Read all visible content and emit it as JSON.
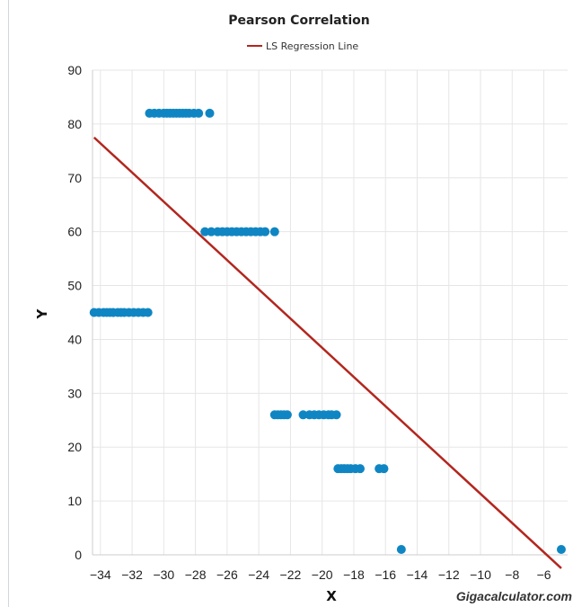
{
  "chart_data": {
    "type": "scatter",
    "title": "Pearson Correlation",
    "xlabel": "X",
    "ylabel": "Y",
    "xlim": [
      -34.5,
      -4.5
    ],
    "ylim": [
      0,
      90
    ],
    "xticks": [
      -34,
      -32,
      -30,
      -28,
      -26,
      -24,
      -22,
      -20,
      -18,
      -16,
      -14,
      -12,
      -10,
      -8,
      -6
    ],
    "yticks": [
      0,
      10,
      20,
      30,
      40,
      50,
      60,
      70,
      80,
      90
    ],
    "grid": true,
    "legend": {
      "position": "top-center",
      "entries": [
        "LS Regression Line"
      ]
    },
    "colors": {
      "points": "#0f86c3",
      "line": "#b3261e"
    },
    "series": [
      {
        "type": "scatter",
        "x": [
          -34.4,
          -34.1,
          -33.8,
          -33.6,
          -33.4,
          -33.2,
          -32.9,
          -32.7,
          -32.5,
          -32.2,
          -31.9,
          -31.6,
          -31.3,
          -31.0,
          -30.9,
          -30.6,
          -30.3,
          -30.0,
          -29.8,
          -29.6,
          -29.4,
          -29.2,
          -29.0,
          -28.8,
          -28.6,
          -28.4,
          -28.1,
          -27.8,
          -27.1,
          -27.4,
          -27.0,
          -26.6,
          -26.3,
          -26.0,
          -25.7,
          -25.4,
          -25.1,
          -24.8,
          -24.5,
          -24.2,
          -23.9,
          -23.6,
          -23.0,
          -23.0,
          -22.8,
          -22.6,
          -22.4,
          -22.2,
          -21.2,
          -20.8,
          -20.5,
          -20.2,
          -19.9,
          -19.6,
          -19.4,
          -19.1,
          -19.0,
          -18.8,
          -18.6,
          -18.4,
          -18.2,
          -17.9,
          -17.6,
          -16.4,
          -16.1,
          -15.0,
          -4.9
        ],
        "y": [
          45,
          45,
          45,
          45,
          45,
          45,
          45,
          45,
          45,
          45,
          45,
          45,
          45,
          45,
          82,
          82,
          82,
          82,
          82,
          82,
          82,
          82,
          82,
          82,
          82,
          82,
          82,
          82,
          82,
          60,
          60,
          60,
          60,
          60,
          60,
          60,
          60,
          60,
          60,
          60,
          60,
          60,
          60,
          26,
          26,
          26,
          26,
          26,
          26,
          26,
          26,
          26,
          26,
          26,
          26,
          26,
          16,
          16,
          16,
          16,
          16,
          16,
          16,
          16,
          16,
          1,
          1
        ]
      },
      {
        "name": "LS Regression Line",
        "type": "line",
        "x": [
          -34.4,
          -4.9
        ],
        "y": [
          77.5,
          -2.5
        ]
      }
    ],
    "watermark": "Gigacalculator.com"
  }
}
